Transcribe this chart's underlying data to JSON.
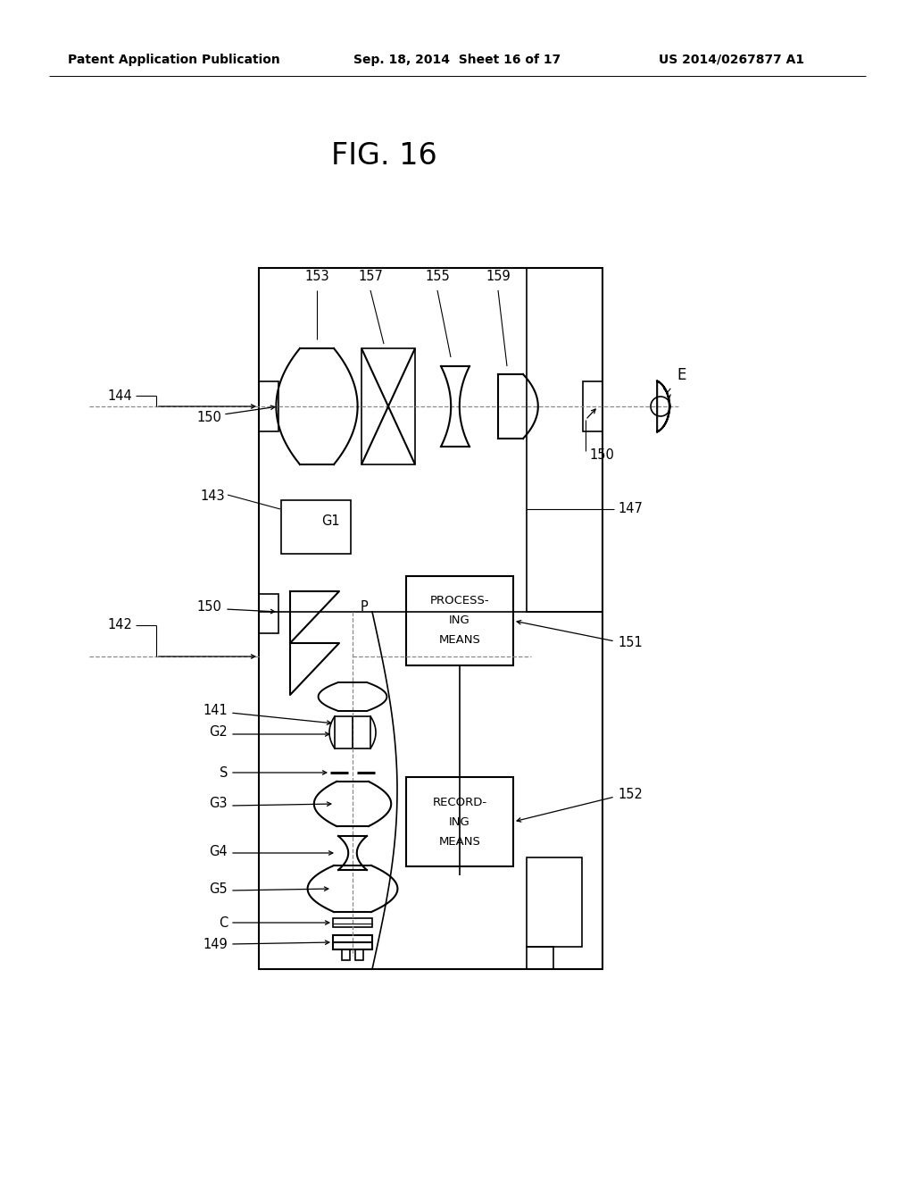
{
  "title": "FIG. 16",
  "header_left": "Patent Application Publication",
  "header_mid": "Sep. 18, 2014  Sheet 16 of 17",
  "header_right": "US 2014/0267877 A1",
  "bg_color": "#ffffff",
  "text_color": "#000000"
}
